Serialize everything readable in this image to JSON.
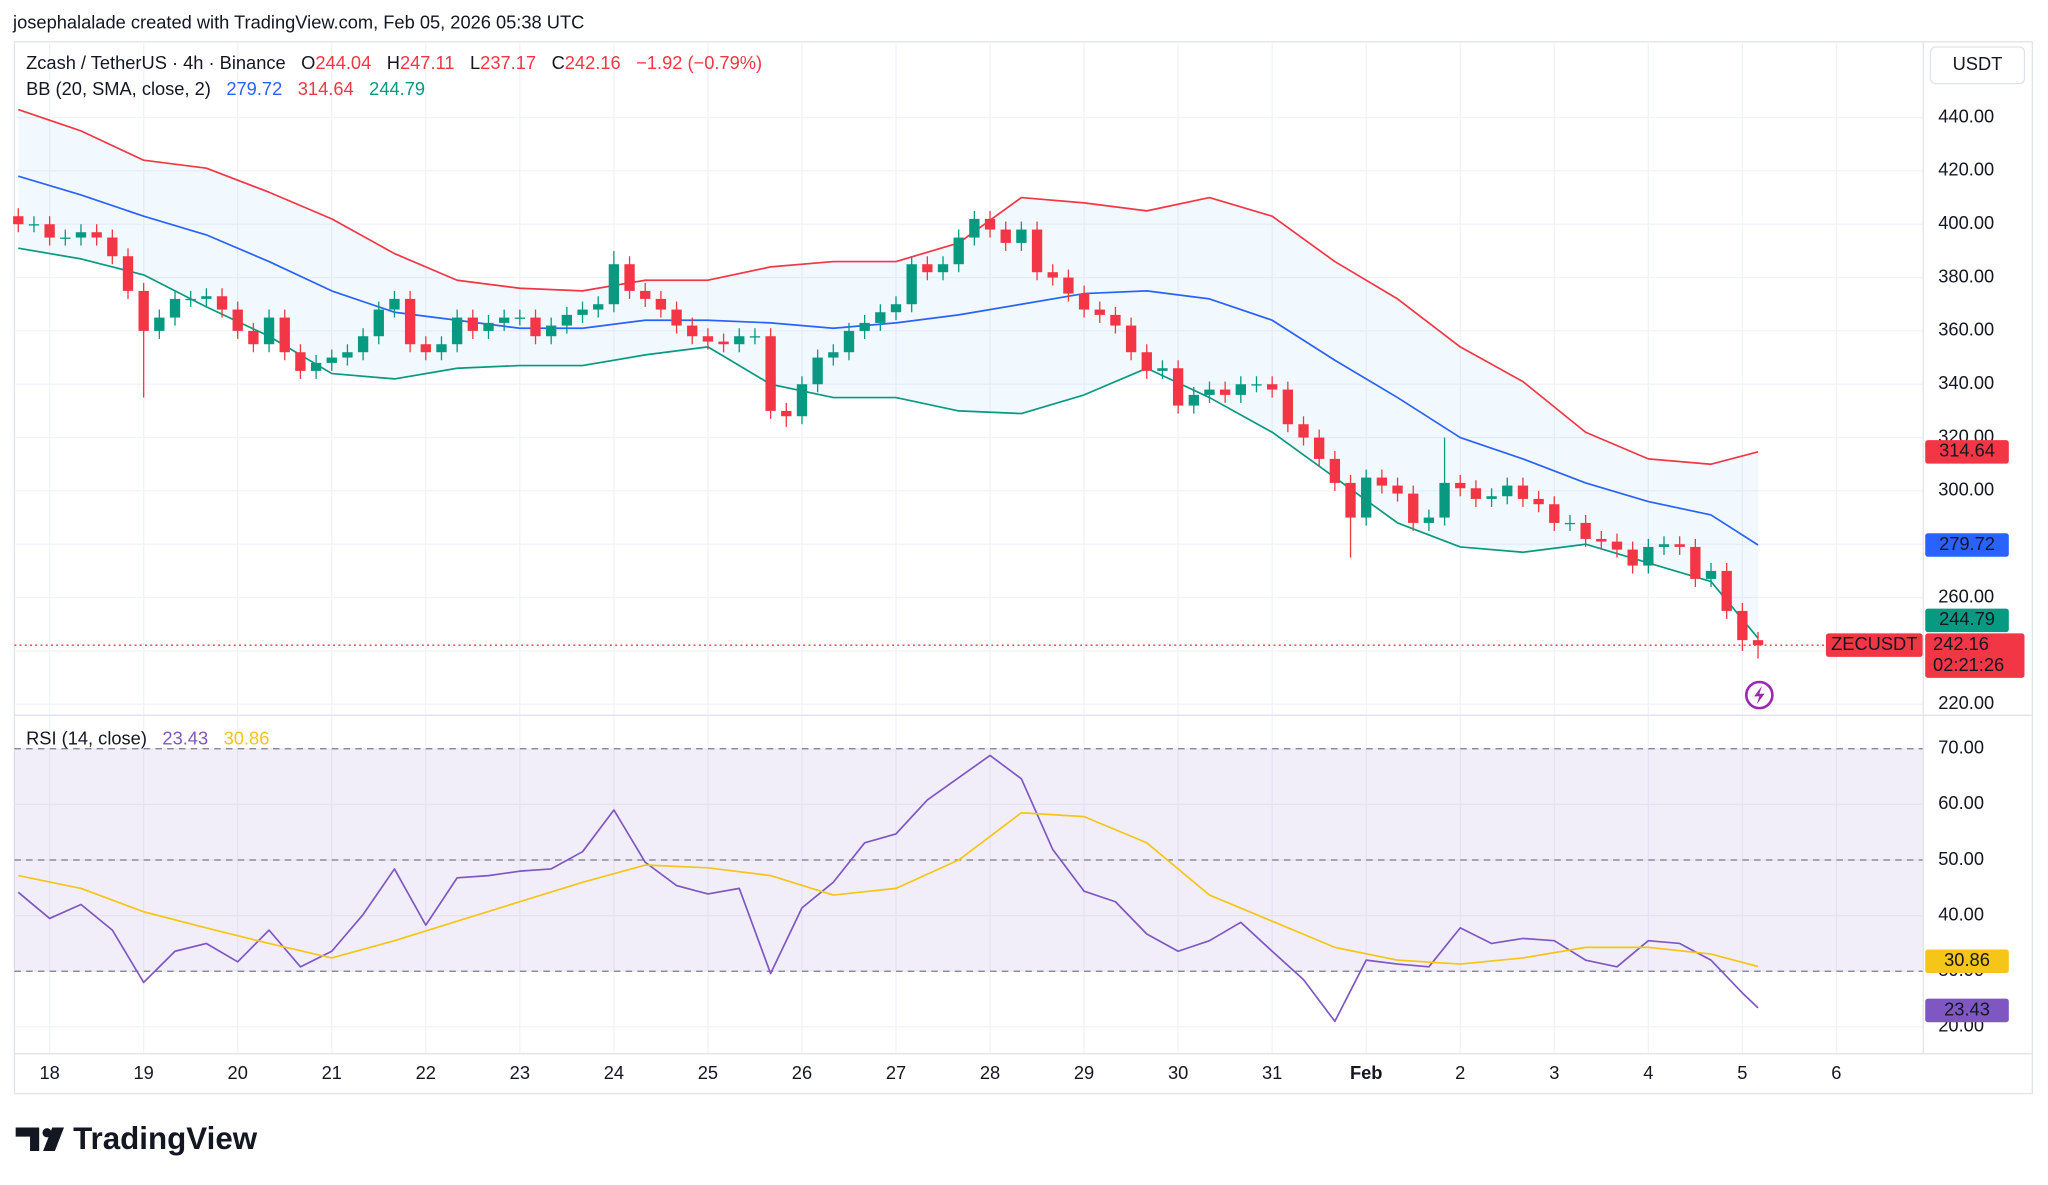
{
  "header": {
    "author_line": "josephalalade created with TradingView.com, Feb 05, 2026 05:38 UTC"
  },
  "brand": "TradingView",
  "chart_data": [
    {
      "type": "candlestick",
      "title": "Zcash / TetherUS · 4h · Binance",
      "currency": "USDT",
      "symbol": "ZECUSDT",
      "countdown": "02:21:26",
      "ohlc_labels": [
        "O",
        "H",
        "L",
        "C"
      ],
      "change": "−1.92 (−0.79%)",
      "indicator": "BB (20, SMA, close, 2)",
      "up_color": "#089981",
      "down_color": "#f23645",
      "grid": true,
      "open": [
        403,
        400,
        400,
        395,
        395,
        397,
        395,
        388,
        375,
        360,
        365,
        372,
        372,
        373,
        368,
        360,
        355,
        365,
        352,
        345,
        348,
        350,
        352,
        358,
        368,
        372,
        355,
        352,
        355,
        365,
        360,
        363,
        365,
        365,
        358,
        362,
        366,
        368,
        370,
        385,
        375,
        372,
        368,
        362,
        358,
        356,
        355,
        358,
        358,
        330,
        328,
        340,
        350,
        352,
        360,
        363,
        367,
        370,
        385,
        382,
        385,
        395,
        402,
        398,
        393,
        398,
        382,
        380,
        374,
        368,
        366,
        362,
        352,
        345,
        346,
        332,
        336,
        338,
        336,
        340,
        340,
        338,
        325,
        320,
        312,
        303,
        290,
        305,
        302,
        299,
        288,
        290,
        303,
        301,
        297,
        298,
        302,
        297,
        295,
        288,
        288,
        282,
        281,
        278,
        272,
        279,
        280,
        279,
        267,
        270,
        255,
        244.04
      ],
      "high": [
        406,
        403,
        403,
        398,
        400,
        400,
        398,
        391,
        378,
        368,
        375,
        375,
        376,
        376,
        371,
        363,
        368,
        368,
        355,
        351,
        353,
        355,
        361,
        371,
        375,
        375,
        358,
        358,
        368,
        368,
        366,
        368,
        368,
        368,
        365,
        369,
        371,
        373,
        390,
        388,
        378,
        375,
        371,
        365,
        361,
        359,
        361,
        361,
        361,
        333,
        343,
        353,
        355,
        363,
        366,
        370,
        373,
        388,
        388,
        388,
        398,
        405,
        405,
        401,
        401,
        401,
        385,
        383,
        377,
        371,
        369,
        365,
        355,
        349,
        349,
        339,
        341,
        341,
        343,
        343,
        343,
        341,
        328,
        323,
        315,
        306,
        308,
        308,
        305,
        302,
        293,
        320,
        306,
        304,
        301,
        305,
        305,
        300,
        298,
        291,
        291,
        285,
        284,
        281,
        282,
        283,
        283,
        282,
        273,
        273,
        258,
        247.11
      ],
      "low": [
        397,
        397,
        392,
        392,
        392,
        392,
        385,
        372,
        335,
        357,
        362,
        369,
        369,
        365,
        357,
        352,
        352,
        349,
        342,
        342,
        345,
        347,
        349,
        355,
        365,
        352,
        349,
        349,
        352,
        357,
        357,
        360,
        362,
        355,
        355,
        359,
        363,
        365,
        367,
        372,
        369,
        365,
        359,
        355,
        353,
        352,
        352,
        355,
        327,
        324,
        325,
        337,
        347,
        349,
        357,
        360,
        364,
        367,
        379,
        379,
        382,
        392,
        395,
        390,
        390,
        379,
        377,
        371,
        365,
        363,
        359,
        349,
        342,
        342,
        329,
        329,
        333,
        333,
        333,
        337,
        335,
        322,
        317,
        309,
        300,
        275,
        287,
        299,
        296,
        285,
        285,
        287,
        298,
        294,
        294,
        295,
        294,
        292,
        285,
        285,
        279,
        278,
        275,
        269,
        269,
        276,
        276,
        264,
        264,
        252,
        240,
        237.17
      ],
      "close": [
        400,
        400,
        395,
        395,
        397,
        395,
        388,
        375,
        360,
        365,
        372,
        372,
        373,
        368,
        360,
        355,
        365,
        352,
        345,
        348,
        350,
        352,
        358,
        368,
        372,
        355,
        352,
        355,
        365,
        360,
        363,
        365,
        365,
        358,
        362,
        366,
        368,
        370,
        385,
        375,
        372,
        368,
        362,
        358,
        356,
        355,
        358,
        358,
        330,
        328,
        340,
        350,
        352,
        360,
        363,
        367,
        370,
        385,
        382,
        385,
        395,
        402,
        398,
        393,
        398,
        382,
        380,
        374,
        368,
        366,
        362,
        352,
        345,
        346,
        332,
        336,
        338,
        336,
        340,
        340,
        338,
        325,
        320,
        312,
        303,
        290,
        305,
        302,
        299,
        288,
        290,
        303,
        301,
        297,
        298,
        302,
        297,
        295,
        288,
        288,
        282,
        281,
        278,
        272,
        279,
        280,
        279,
        267,
        270,
        255,
        244.04,
        242.16
      ],
      "xlim": [
        -0.25,
        121.5
      ],
      "xticks": [
        {
          "value": 2,
          "label": "18"
        },
        {
          "value": 8,
          "label": "19"
        },
        {
          "value": 14,
          "label": "20"
        },
        {
          "value": 20,
          "label": "21"
        },
        {
          "value": 26,
          "label": "22"
        },
        {
          "value": 32,
          "label": "23"
        },
        {
          "value": 38,
          "label": "24"
        },
        {
          "value": 44,
          "label": "25"
        },
        {
          "value": 50,
          "label": "26"
        },
        {
          "value": 56,
          "label": "27"
        },
        {
          "value": 62,
          "label": "28"
        },
        {
          "value": 68,
          "label": "29"
        },
        {
          "value": 74,
          "label": "30"
        },
        {
          "value": 80,
          "label": "31"
        },
        {
          "value": 86,
          "label": "Feb"
        },
        {
          "value": 92,
          "label": "2"
        },
        {
          "value": 98,
          "label": "3"
        },
        {
          "value": 104,
          "label": "4"
        },
        {
          "value": 110,
          "label": "5"
        },
        {
          "value": 116,
          "label": "6"
        }
      ],
      "ylim": [
        216.1,
        468.4
      ],
      "yticks": [
        {
          "value": 220,
          "label": "220.00"
        },
        {
          "value": 240,
          "label": "240.00"
        },
        {
          "value": 260,
          "label": "260.00"
        },
        {
          "value": 280,
          "label": "280.00"
        },
        {
          "value": 300,
          "label": "300.00"
        },
        {
          "value": 320,
          "label": "320.00"
        },
        {
          "value": 340,
          "label": "340.00"
        },
        {
          "value": 360,
          "label": "360.00"
        },
        {
          "value": 380,
          "label": "380.00"
        },
        {
          "value": 400,
          "label": "400.00"
        },
        {
          "value": 420,
          "label": "420.00"
        },
        {
          "value": 440,
          "label": "440.00"
        }
      ],
      "series": [
        {
          "color": "#f23645",
          "x": [
            0,
            4,
            8,
            12,
            16,
            20,
            24,
            28,
            32,
            36,
            40,
            44,
            48,
            52,
            56,
            60,
            64,
            68,
            72,
            76,
            80,
            84,
            88,
            92,
            96,
            100,
            104,
            108,
            111
          ],
          "values": [
            443,
            435,
            424,
            421,
            412,
            402,
            389,
            379,
            376,
            375,
            379,
            379,
            384,
            386,
            386,
            393,
            410,
            408,
            405,
            410,
            403,
            386,
            372,
            354,
            341,
            322,
            312,
            310,
            314.64
          ]
        },
        {
          "color": "#2962ff",
          "x": [
            0,
            4,
            8,
            12,
            16,
            20,
            24,
            28,
            32,
            36,
            40,
            44,
            48,
            52,
            56,
            60,
            64,
            68,
            72,
            76,
            80,
            84,
            88,
            92,
            96,
            100,
            104,
            108,
            111
          ],
          "values": [
            418,
            411,
            403,
            396,
            386,
            375,
            367,
            364,
            361,
            361,
            364,
            364,
            363,
            361,
            363,
            366,
            370,
            374,
            375,
            372,
            364,
            349,
            335,
            320,
            312,
            303,
            296,
            291,
            279.72
          ]
        },
        {
          "color": "#089981",
          "x": [
            0,
            4,
            8,
            12,
            16,
            20,
            24,
            28,
            32,
            36,
            40,
            44,
            48,
            52,
            56,
            60,
            64,
            68,
            72,
            76,
            80,
            84,
            88,
            92,
            96,
            100,
            104,
            108,
            111
          ],
          "values": [
            391,
            387,
            381,
            369,
            358,
            344,
            342,
            346,
            347,
            347,
            351,
            354,
            340,
            335,
            335,
            330,
            329,
            336,
            346,
            335,
            322,
            305,
            288,
            279,
            277,
            280,
            273,
            266,
            244.79
          ]
        }
      ]
    },
    {
      "type": "line",
      "indicator": "RSI (14, close)",
      "ylim": [
        15.3,
        75.9
      ],
      "yticks": [
        {
          "value": 20,
          "label": "20.00"
        },
        {
          "value": 30,
          "label": "30.00"
        },
        {
          "value": 40,
          "label": "40.00"
        },
        {
          "value": 50,
          "label": "50.00"
        },
        {
          "value": 60,
          "label": "60.00"
        },
        {
          "value": 70,
          "label": "70.00"
        }
      ],
      "levels": [
        70,
        50,
        30
      ],
      "series": [
        {
          "color": "#7e57c2",
          "x": [
            0,
            2,
            4,
            6,
            8,
            10,
            12,
            14,
            16,
            18,
            20,
            22,
            24,
            26,
            28,
            30,
            32,
            34,
            36,
            38,
            40,
            42,
            44,
            46,
            48,
            50,
            52,
            54,
            56,
            58,
            60,
            62,
            64,
            66,
            68,
            70,
            72,
            74,
            76,
            78,
            80,
            82,
            84,
            86,
            88,
            90,
            92,
            94,
            96,
            98,
            100,
            102,
            104,
            106,
            108,
            110,
            111
          ],
          "values": [
            44.2,
            39.5,
            42,
            37.4,
            28,
            33.6,
            35,
            31.7,
            37.4,
            30.8,
            33.6,
            40.2,
            48.4,
            38.3,
            46.8,
            47.2,
            48,
            48.4,
            51.5,
            59,
            49.6,
            45.4,
            43.9,
            44.9,
            29.6,
            41.4,
            46,
            53.1,
            54.7,
            60.8,
            64.8,
            68.8,
            64.6,
            51.9,
            44.4,
            42.5,
            36.7,
            33.6,
            35.5,
            38.8,
            33.6,
            28.5,
            21,
            32,
            31.3,
            30.8,
            37.8,
            35,
            35.9,
            35.5,
            32,
            30.8,
            35.5,
            35,
            32,
            26.1,
            23.43
          ]
        },
        {
          "color": "#f5c518",
          "x": [
            0,
            4,
            8,
            12,
            16,
            20,
            24,
            28,
            32,
            36,
            40,
            44,
            48,
            52,
            56,
            60,
            64,
            68,
            72,
            76,
            80,
            84,
            88,
            92,
            96,
            100,
            104,
            108,
            111
          ],
          "values": [
            47.2,
            44.9,
            40.7,
            37.8,
            35,
            32.4,
            35.5,
            39,
            42.5,
            46,
            49.1,
            48.6,
            47.2,
            43.7,
            44.9,
            50,
            58.5,
            57.8,
            53.1,
            43.7,
            39,
            34.3,
            32,
            31.3,
            32.4,
            34.3,
            34.3,
            33.1,
            30.86
          ]
        }
      ]
    }
  ]
}
